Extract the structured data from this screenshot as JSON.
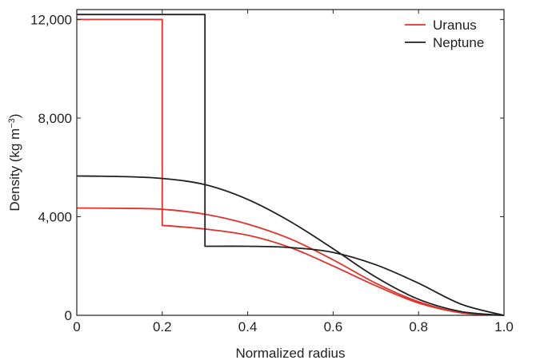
{
  "chart_data": {
    "type": "line",
    "xlabel": "Normalized radius",
    "ylabel": "Density (kg m",
    "ylabel_sup": "−3",
    "ylabel_close": ")",
    "xlim": [
      0,
      1
    ],
    "ylim": [
      0,
      12400
    ],
    "xticks": [
      0,
      0.2,
      0.4,
      0.6,
      0.8,
      1.0
    ],
    "xtick_labels": [
      "0",
      "0.2",
      "0.4",
      "0.6",
      "0.8",
      "1.0"
    ],
    "yticks": [
      0,
      4000,
      8000,
      12000
    ],
    "ytick_labels": [
      "0",
      "4,000",
      "8,000",
      "12,000"
    ],
    "legend_position": "top-right",
    "grid": false,
    "series": [
      {
        "name": "Uranus",
        "color": "#e0312b",
        "curves": [
          [
            [
              0,
              12000
            ],
            [
              0.2,
              12000
            ],
            [
              0.2,
              3650
            ],
            [
              0.3,
              3500
            ],
            [
              0.4,
              3250
            ],
            [
              0.5,
              2750
            ],
            [
              0.6,
              2000
            ],
            [
              0.7,
              1200
            ],
            [
              0.8,
              500
            ],
            [
              0.9,
              100
            ],
            [
              1.0,
              0
            ]
          ],
          [
            [
              0,
              4350
            ],
            [
              0.1,
              4340
            ],
            [
              0.2,
              4300
            ],
            [
              0.3,
              4100
            ],
            [
              0.4,
              3700
            ],
            [
              0.5,
              3100
            ],
            [
              0.6,
              2250
            ],
            [
              0.7,
              1300
            ],
            [
              0.8,
              550
            ],
            [
              0.9,
              100
            ],
            [
              1.0,
              0
            ]
          ]
        ]
      },
      {
        "name": "Neptune",
        "color": "#231f20",
        "curves": [
          [
            [
              0,
              12200
            ],
            [
              0.3,
              12200
            ],
            [
              0.3,
              2800
            ],
            [
              0.4,
              2800
            ],
            [
              0.5,
              2750
            ],
            [
              0.6,
              2550
            ],
            [
              0.7,
              2050
            ],
            [
              0.8,
              1300
            ],
            [
              0.9,
              450
            ],
            [
              1.0,
              0
            ]
          ],
          [
            [
              0,
              5650
            ],
            [
              0.1,
              5630
            ],
            [
              0.2,
              5550
            ],
            [
              0.3,
              5300
            ],
            [
              0.4,
              4700
            ],
            [
              0.5,
              3800
            ],
            [
              0.6,
              2700
            ],
            [
              0.7,
              1550
            ],
            [
              0.8,
              650
            ],
            [
              0.9,
              150
            ],
            [
              1.0,
              0
            ]
          ]
        ]
      }
    ]
  }
}
